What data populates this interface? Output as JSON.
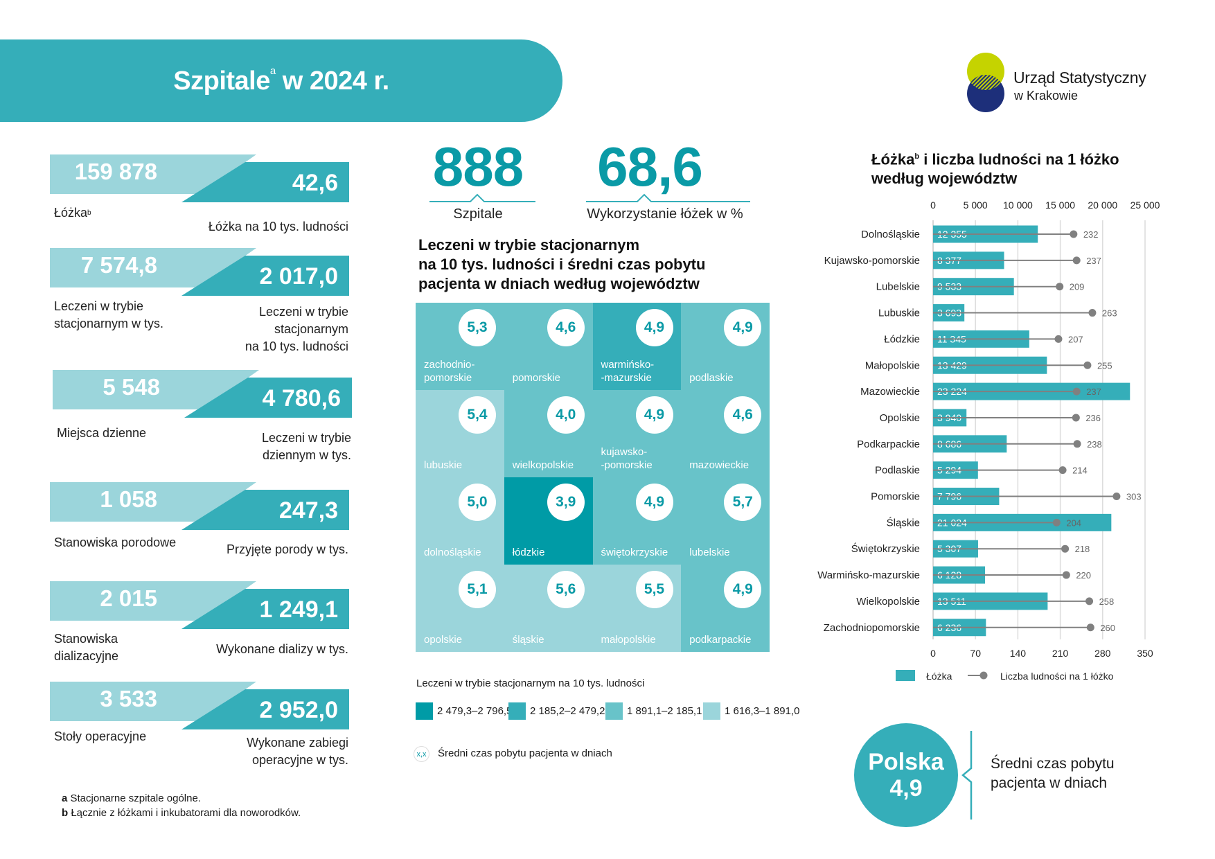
{
  "header": {
    "title": "Szpitale",
    "title_sup": "a",
    "title_rest": " w 2024 r."
  },
  "logo": {
    "line1": "Urząd Statystyczny",
    "line2": "w Krakowie",
    "colors": {
      "top": "#c5d300",
      "bottom": "#1d2f7a"
    }
  },
  "colors": {
    "accent": "#35aeb9",
    "light": "#9bd5db",
    "dark_text": "#0a9aa6"
  },
  "stats": [
    {
      "value": "159 878",
      "label": "Łóżka",
      "label_sup": "b",
      "value2": "42,6",
      "label2": "Łóżka na 10 tys. ludności"
    },
    {
      "value": "7 574,8",
      "label": "Leczeni w trybie\nstacjonarnym w tys.",
      "label_sup": "",
      "value2": "2 017,0",
      "label2": "Leczeni w trybie\nstacjonarnym\nna 10 tys. ludności"
    },
    {
      "value": "5 548",
      "label": "Miejsca dzienne",
      "label_sup": "",
      "value2": "4 780,6",
      "label2": "Leczeni w trybie\ndziennym w tys."
    },
    {
      "value": "1 058",
      "label": "Stanowiska porodowe",
      "label_sup": "",
      "value2": "247,3",
      "label2": "Przyjęte porody w tys."
    },
    {
      "value": "2 015",
      "label": "Stanowiska\ndializacyjne",
      "label_sup": "",
      "value2": "1 249,1",
      "label2": "Wykonane dializy w tys."
    },
    {
      "value": "3 533",
      "label": "Stoły operacyjne",
      "label_sup": "",
      "value2": "2 952,0",
      "label2": "Wykonane zabiegi\noperacyjne w tys."
    }
  ],
  "kpis": [
    {
      "value": "888",
      "label": "Szpitale"
    },
    {
      "value": "68,6",
      "label": "Wykorzystanie łóżek w %"
    }
  ],
  "map": {
    "heading": "Leczeni w trybie stacjonarnym\nna 10 tys. ludności i średni czas pobytu\npacjenta w dniach według województw",
    "tiles": [
      {
        "name": "zachodnio-\npomorskie",
        "value": "5,3",
        "class": 3
      },
      {
        "name": "pomorskie",
        "value": "4,6",
        "class": 3
      },
      {
        "name": "warmińsko-\n-mazurskie",
        "value": "4,9",
        "class": 2
      },
      {
        "name": "podlaskie",
        "value": "4,9",
        "class": 3
      },
      {
        "name": "lubuskie",
        "value": "5,4",
        "class": 4
      },
      {
        "name": "wielkopolskie",
        "value": "4,0",
        "class": 3
      },
      {
        "name": "kujawsko-\n-pomorskie",
        "value": "4,9",
        "class": 3
      },
      {
        "name": "mazowieckie",
        "value": "4,6",
        "class": 3
      },
      {
        "name": "dolnośląskie",
        "value": "5,0",
        "class": 4
      },
      {
        "name": "łódzkie",
        "value": "3,9",
        "class": 1
      },
      {
        "name": "świętokrzyskie",
        "value": "4,9",
        "class": 3
      },
      {
        "name": "lubelskie",
        "value": "5,7",
        "class": 3
      },
      {
        "name": "opolskie",
        "value": "5,1",
        "class": 4
      },
      {
        "name": "śląskie",
        "value": "5,6",
        "class": 4
      },
      {
        "name": "małopolskie",
        "value": "5,5",
        "class": 4
      },
      {
        "name": "podkarpackie",
        "value": "4,9",
        "class": 3
      }
    ],
    "legend_title": "Leczeni w trybie stacjonarnym na 10 tys. ludności",
    "legend": [
      {
        "label": "2 479,3–2 796,5",
        "color": "#009ba6"
      },
      {
        "label": "2 185,2–2 479,2",
        "color": "#35aeb9"
      },
      {
        "label": "1 891,1–2 185,1",
        "color": "#68c3c9"
      },
      {
        "label": "1 616,3–1 891,0",
        "color": "#9bd5db"
      }
    ],
    "symbol_sample": "x,x",
    "symbol_label": "Średni czas pobytu pacjenta w dniach"
  },
  "chart_data": {
    "type": "bar",
    "title": "Łóżka",
    "title_sup": "b",
    "title_rest": " i liczba ludności na 1 łóżko\nwedług województw",
    "categories": [
      "Dolnośląskie",
      "Kujawsko-pomorskie",
      "Lubelskie",
      "Lubuskie",
      "Łódzkie",
      "Małopolskie",
      "Mazowieckie",
      "Opolskie",
      "Podkarpackie",
      "Podlaskie",
      "Pomorskie",
      "Śląskie",
      "Świętokrzyskie",
      "Warmińsko-mazurskie",
      "Wielkopolskie",
      "Zachodniopomorskie"
    ],
    "series": [
      {
        "name": "Łóżka",
        "type": "bar",
        "color": "#35aeb9",
        "values": [
          12355,
          8377,
          9533,
          3693,
          11345,
          13429,
          23224,
          3940,
          8686,
          5294,
          7796,
          21024,
          5307,
          6128,
          13511,
          6236
        ],
        "labels": [
          "12 355",
          "8 377",
          "9 533",
          "3 693",
          "11 345",
          "13 429",
          "23 224",
          "3 940",
          "8 686",
          "5 294",
          "7 796",
          "21 024",
          "5 307",
          "6 128",
          "13 511",
          "6 236"
        ],
        "axis": "top",
        "xlim": [
          0,
          25000
        ],
        "ticks": [
          "0",
          "5 000",
          "10 000",
          "15 000",
          "20 000",
          "25 000"
        ],
        "tick_values": [
          0,
          5000,
          10000,
          15000,
          20000,
          25000
        ]
      },
      {
        "name": "Liczba ludności na 1 łóżko",
        "type": "lollipop",
        "color": "#808080",
        "values": [
          232,
          237,
          209,
          263,
          207,
          255,
          237,
          236,
          238,
          214,
          303,
          204,
          218,
          220,
          258,
          260
        ],
        "axis": "bottom",
        "xlim": [
          0,
          350
        ],
        "ticks": [
          "0",
          "70",
          "140",
          "210",
          "280",
          "350"
        ],
        "tick_values": [
          0,
          70,
          140,
          210,
          280,
          350
        ]
      }
    ],
    "grid": true,
    "legend_position": "bottom"
  },
  "polska": {
    "label": "Polska",
    "value": "4,9",
    "description": "Średni czas pobytu\npacjenta w dniach"
  },
  "footnotes": [
    {
      "mark": "a",
      "text": " Stacjonarne szpitale ogólne."
    },
    {
      "mark": "b",
      "text": " Łącznie z łóżkami i inkubatorami dla noworodków."
    }
  ]
}
